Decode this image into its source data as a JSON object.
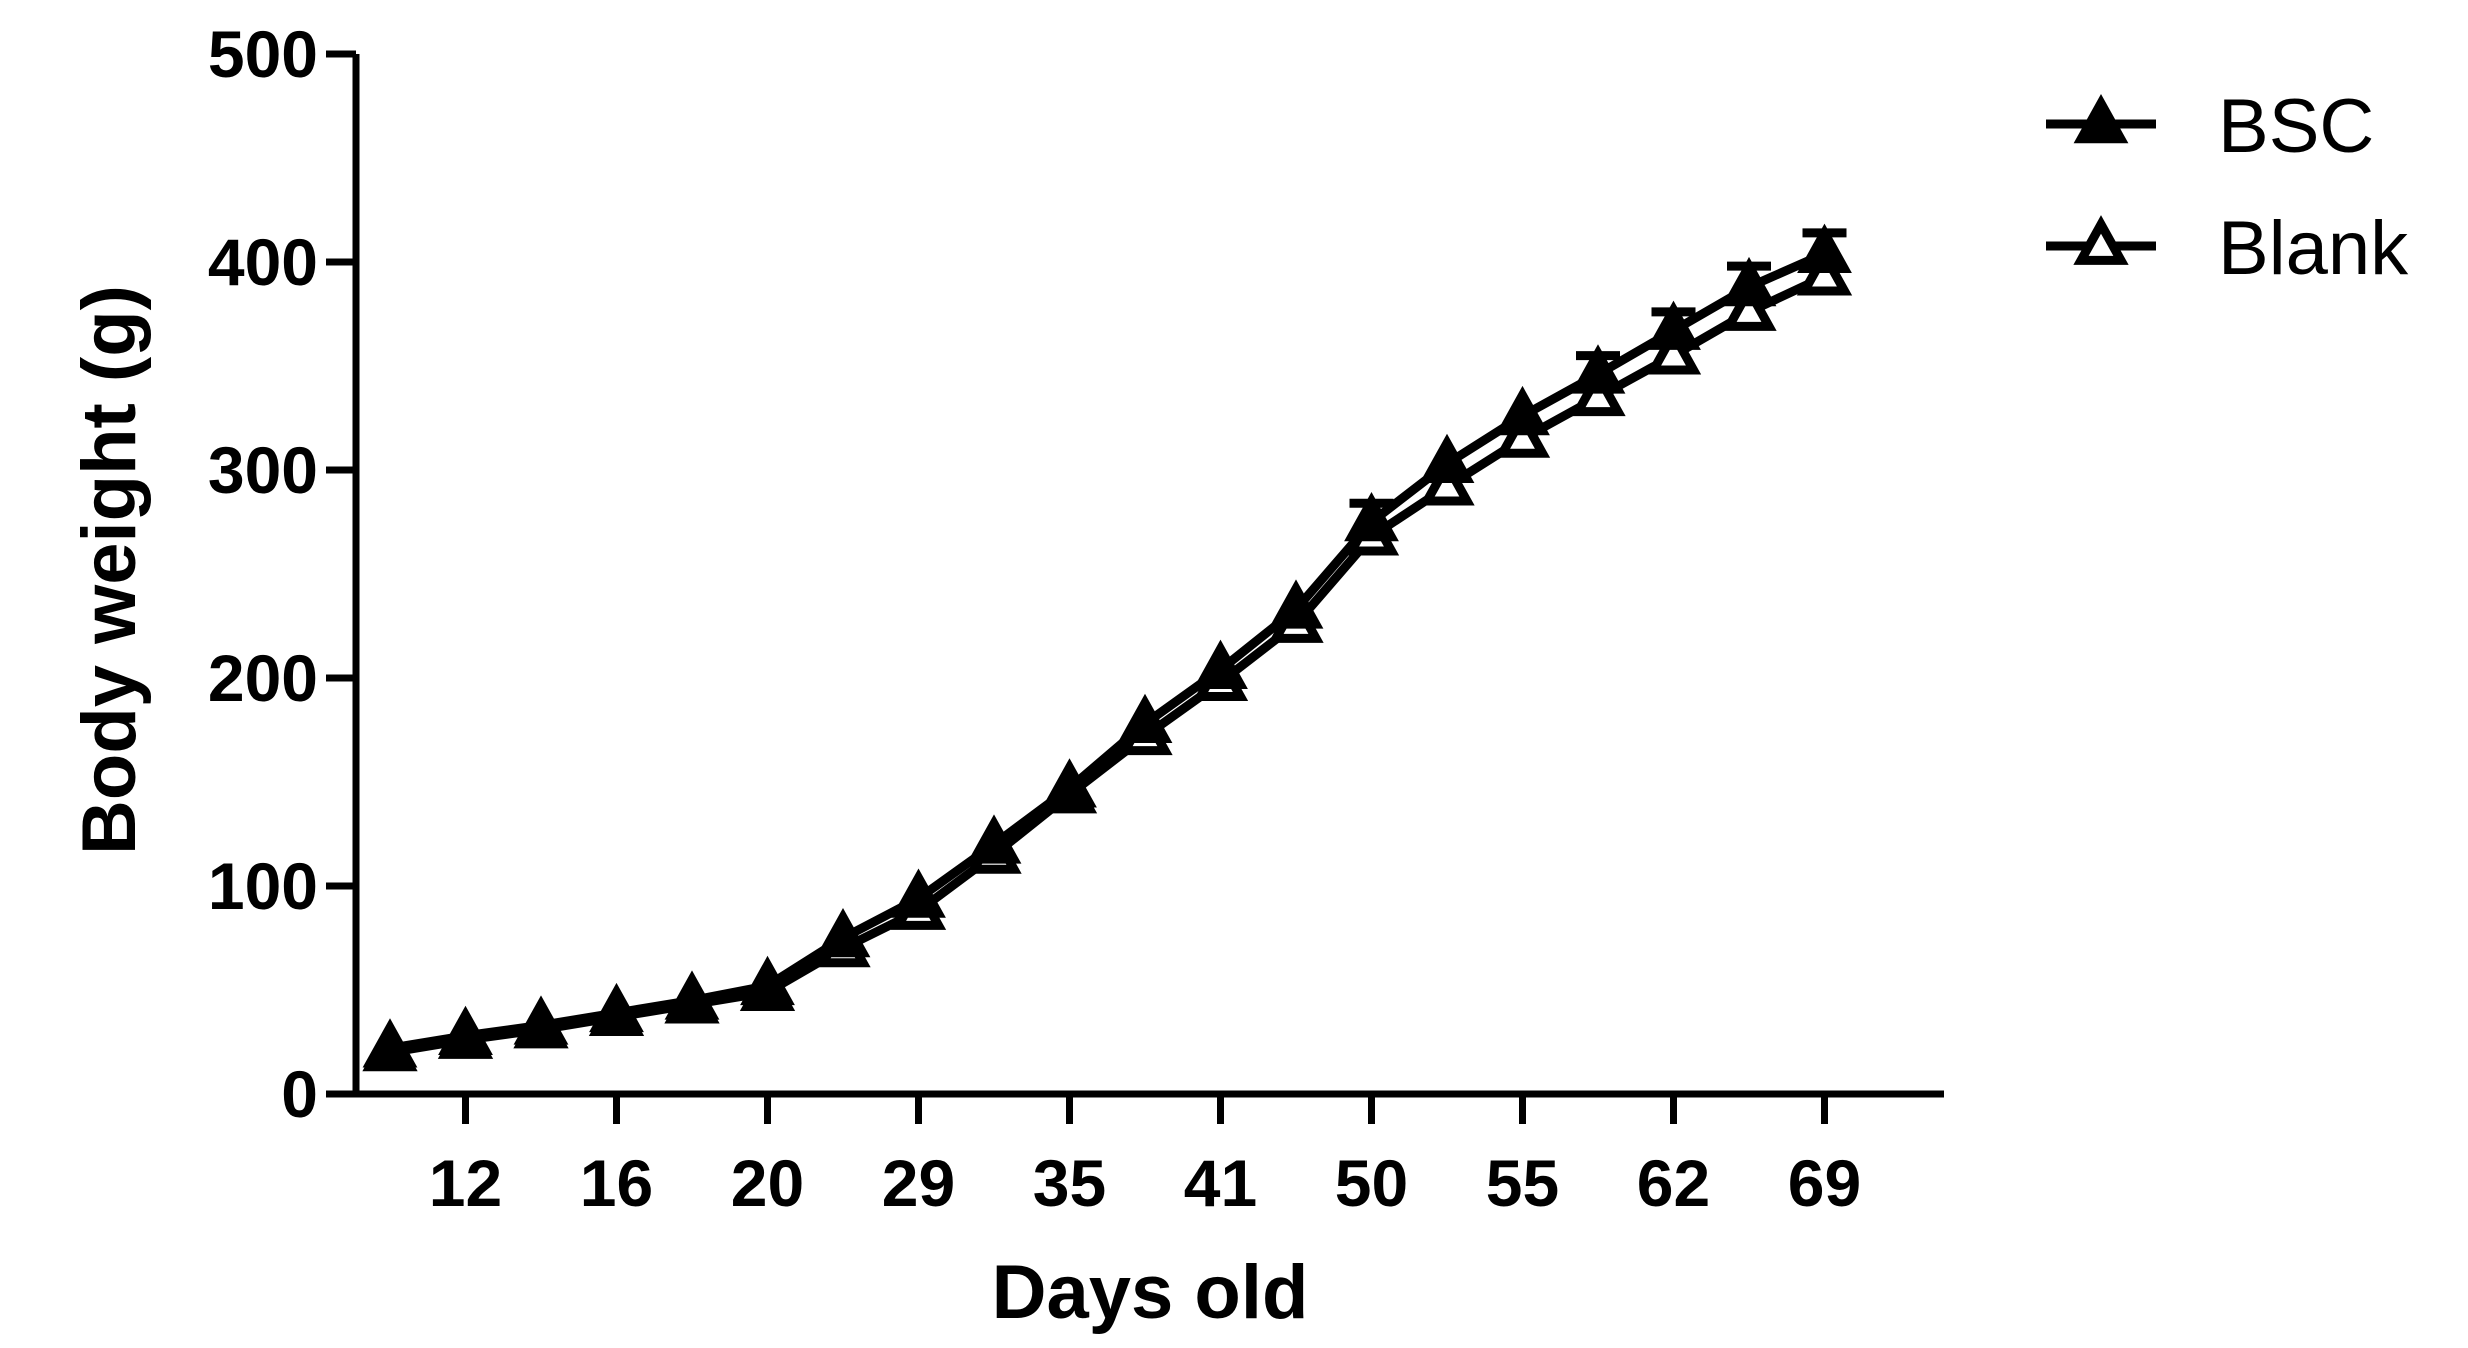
{
  "chart_data": {
    "type": "line",
    "xlabel": "Days old",
    "ylabel": "Body weight (g)",
    "x_tick_labels": [
      "12",
      "16",
      "20",
      "29",
      "35",
      "41",
      "50",
      "55",
      "62",
      "69"
    ],
    "y_tick_labels": [
      "0",
      "100",
      "200",
      "300",
      "400",
      "500"
    ],
    "ylim": [
      0,
      500
    ],
    "legend_position": "top-right",
    "series": [
      {
        "name": "BSC",
        "marker": "filled-triangle",
        "values": [
          22,
          28,
          33,
          39,
          45,
          52,
          75,
          94,
          120,
          147,
          178,
          204,
          233,
          275,
          303,
          326,
          346,
          367,
          388,
          404
        ],
        "error": [
          0,
          0,
          0,
          0,
          0,
          0,
          0,
          0,
          0,
          0,
          0,
          0,
          0,
          9,
          0,
          0,
          9,
          9,
          10,
          10
        ]
      },
      {
        "name": "Blank",
        "marker": "open-triangle",
        "values": [
          20,
          26,
          31,
          37,
          43,
          49,
          70,
          88,
          115,
          144,
          172,
          198,
          226,
          268,
          292,
          315,
          335,
          355,
          376,
          393
        ],
        "error": [
          0,
          0,
          0,
          0,
          0,
          0,
          0,
          0,
          0,
          0,
          0,
          0,
          0,
          0,
          0,
          0,
          0,
          0,
          0,
          0
        ]
      }
    ],
    "colors": {
      "line": "#000000",
      "background": "#ffffff"
    }
  }
}
